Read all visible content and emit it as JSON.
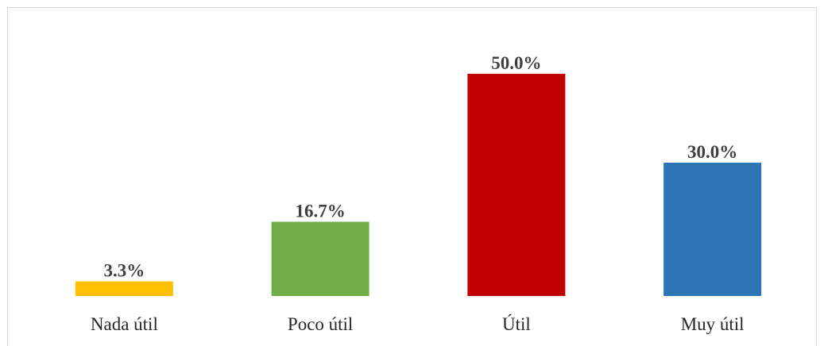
{
  "chart_data": {
    "type": "bar",
    "categories": [
      "Nada útil",
      "Poco útil",
      "Útil",
      "Muy útil"
    ],
    "values": [
      3.3,
      16.7,
      50.0,
      30.0
    ],
    "value_labels": [
      "3.3%",
      "16.7%",
      "50.0%",
      "30.0%"
    ],
    "colors": [
      "#ffc000",
      "#70ad47",
      "#c00000",
      "#2e75b6"
    ]
  }
}
